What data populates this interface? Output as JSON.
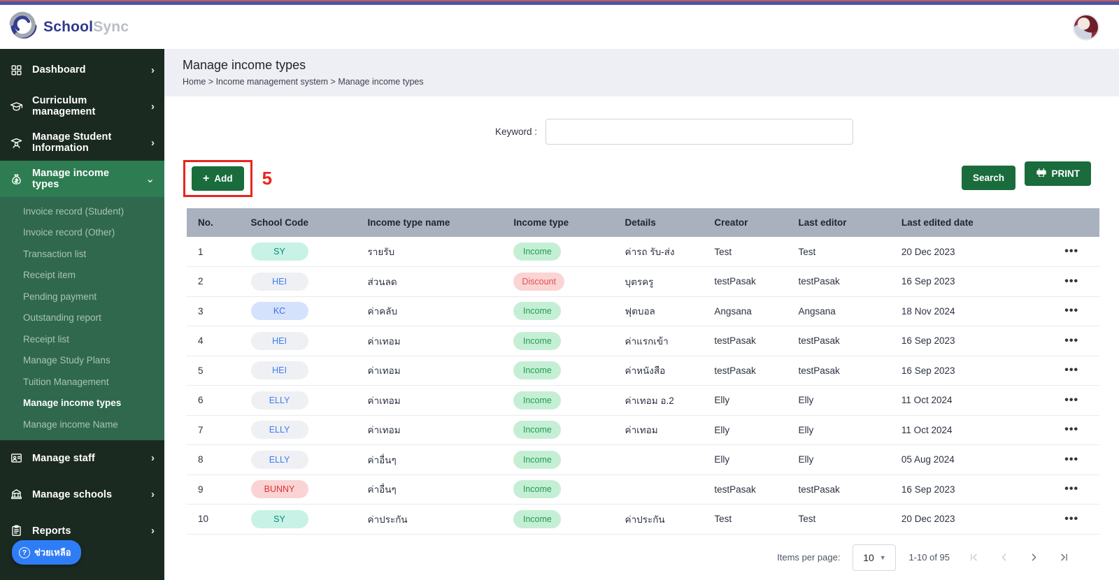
{
  "theme": {
    "topbar_indigo": "#4a55a7",
    "topbar_red": "#c25f5c",
    "sidebar_bg": "#1b2a21",
    "sidebar_active_bg": "#2e7d52",
    "submenu_bg": "#2f684d",
    "button_green": "#1a6c3c",
    "annotation_red": "#e8271d",
    "table_header_bg": "#a8b1bd",
    "help_blue": "#2f7df6"
  },
  "header": {
    "logo_school": "School",
    "logo_sync": "Sync"
  },
  "sidebar": {
    "items": [
      {
        "label": "Dashboard",
        "icon": "dashboard-icon",
        "chevron": "right",
        "active": false
      },
      {
        "label": "Curriculum management",
        "icon": "curriculum-icon",
        "chevron": "right",
        "active": false
      },
      {
        "label": "Manage Student Information",
        "icon": "student-icon",
        "chevron": "right",
        "active": false
      },
      {
        "label": "Manage income types",
        "icon": "income-icon",
        "chevron": "down",
        "active": true,
        "children": [
          {
            "label": "Invoice record (Student)",
            "active": false
          },
          {
            "label": "Invoice record (Other)",
            "active": false
          },
          {
            "label": "Transaction list",
            "active": false
          },
          {
            "label": "Receipt item",
            "active": false
          },
          {
            "label": "Pending payment",
            "active": false
          },
          {
            "label": "Outstanding report",
            "active": false
          },
          {
            "label": "Receipt list",
            "active": false
          },
          {
            "label": "Manage Study Plans",
            "active": false
          },
          {
            "label": "Tuition Management",
            "active": false
          },
          {
            "label": "Manage income types",
            "active": true
          },
          {
            "label": "Manage income Name",
            "active": false
          }
        ]
      },
      {
        "label": "Manage staff",
        "icon": "staff-icon",
        "chevron": "right",
        "active": false
      },
      {
        "label": "Manage schools",
        "icon": "schools-icon",
        "chevron": "right",
        "active": false
      },
      {
        "label": "Reports",
        "icon": "reports-icon",
        "chevron": "right",
        "active": false
      }
    ],
    "help_label": "ช่วยเหลือ"
  },
  "page": {
    "title": "Manage income types",
    "breadcrumb": "Home > Income management system > Manage income types"
  },
  "search": {
    "label": "Keyword :",
    "value": "",
    "button_label": "Search"
  },
  "toolbar": {
    "add_label": "Add",
    "annotation": "5",
    "print_label": "PRINT"
  },
  "table": {
    "columns": [
      "No.",
      "School Code",
      "Income type name",
      "Income type",
      "Details",
      "Creator",
      "Last editor",
      "Last edited date",
      ""
    ],
    "rows": [
      {
        "no": "1",
        "school_code": "SY",
        "code_variant": "mint",
        "income_type_name": "รายรับ",
        "income_type": "Income",
        "type_variant": "income",
        "details": "ค่ารถ รับ-ส่ง",
        "creator": "Test",
        "last_editor": "Test",
        "last_edited_date": "20 Dec 2023"
      },
      {
        "no": "2",
        "school_code": "HEI",
        "code_variant": "gray",
        "income_type_name": "ส่วนลด",
        "income_type": "Discount",
        "type_variant": "discount",
        "details": "บุตรครู",
        "creator": "testPasak",
        "last_editor": "testPasak",
        "last_edited_date": "16 Sep 2023"
      },
      {
        "no": "3",
        "school_code": "KC",
        "code_variant": "blue",
        "income_type_name": "ค่าคลับ",
        "income_type": "Income",
        "type_variant": "income",
        "details": "ฟุตบอล",
        "creator": "Angsana",
        "last_editor": "Angsana",
        "last_edited_date": "18 Nov 2024"
      },
      {
        "no": "4",
        "school_code": "HEI",
        "code_variant": "gray",
        "income_type_name": "ค่าเทอม",
        "income_type": "Income",
        "type_variant": "income",
        "details": "ค่าแรกเข้า",
        "creator": "testPasak",
        "last_editor": "testPasak",
        "last_edited_date": "16 Sep 2023"
      },
      {
        "no": "5",
        "school_code": "HEI",
        "code_variant": "gray",
        "income_type_name": "ค่าเทอม",
        "income_type": "Income",
        "type_variant": "income",
        "details": "ค่าหนังสือ",
        "creator": "testPasak",
        "last_editor": "testPasak",
        "last_edited_date": "16 Sep 2023"
      },
      {
        "no": "6",
        "school_code": "ELLY",
        "code_variant": "gray",
        "income_type_name": "ค่าเทอม",
        "income_type": "Income",
        "type_variant": "income",
        "details": "ค่าเทอม อ.2",
        "creator": "Elly",
        "last_editor": "Elly",
        "last_edited_date": "11 Oct 2024"
      },
      {
        "no": "7",
        "school_code": "ELLY",
        "code_variant": "gray",
        "income_type_name": "ค่าเทอม",
        "income_type": "Income",
        "type_variant": "income",
        "details": "ค่าเทอม",
        "creator": "Elly",
        "last_editor": "Elly",
        "last_edited_date": "11 Oct 2024"
      },
      {
        "no": "8",
        "school_code": "ELLY",
        "code_variant": "gray",
        "income_type_name": "ค่าอื่นๆ",
        "income_type": "Income",
        "type_variant": "income",
        "details": "",
        "creator": "Elly",
        "last_editor": "Elly",
        "last_edited_date": "05 Aug 2024"
      },
      {
        "no": "9",
        "school_code": "BUNNY",
        "code_variant": "pink",
        "income_type_name": "ค่าอื่นๆ",
        "income_type": "Income",
        "type_variant": "income",
        "details": "",
        "creator": "testPasak",
        "last_editor": "testPasak",
        "last_edited_date": "16 Sep 2023"
      },
      {
        "no": "10",
        "school_code": "SY",
        "code_variant": "mint",
        "income_type_name": "ค่าประกัน",
        "income_type": "Income",
        "type_variant": "income",
        "details": "ค่าประกัน",
        "creator": "Test",
        "last_editor": "Test",
        "last_edited_date": "20 Dec 2023"
      }
    ],
    "row_actions_glyph": "•••"
  },
  "pagination": {
    "items_per_page_label": "Items per page:",
    "per_page": "10",
    "range": "1-10 of 95"
  }
}
